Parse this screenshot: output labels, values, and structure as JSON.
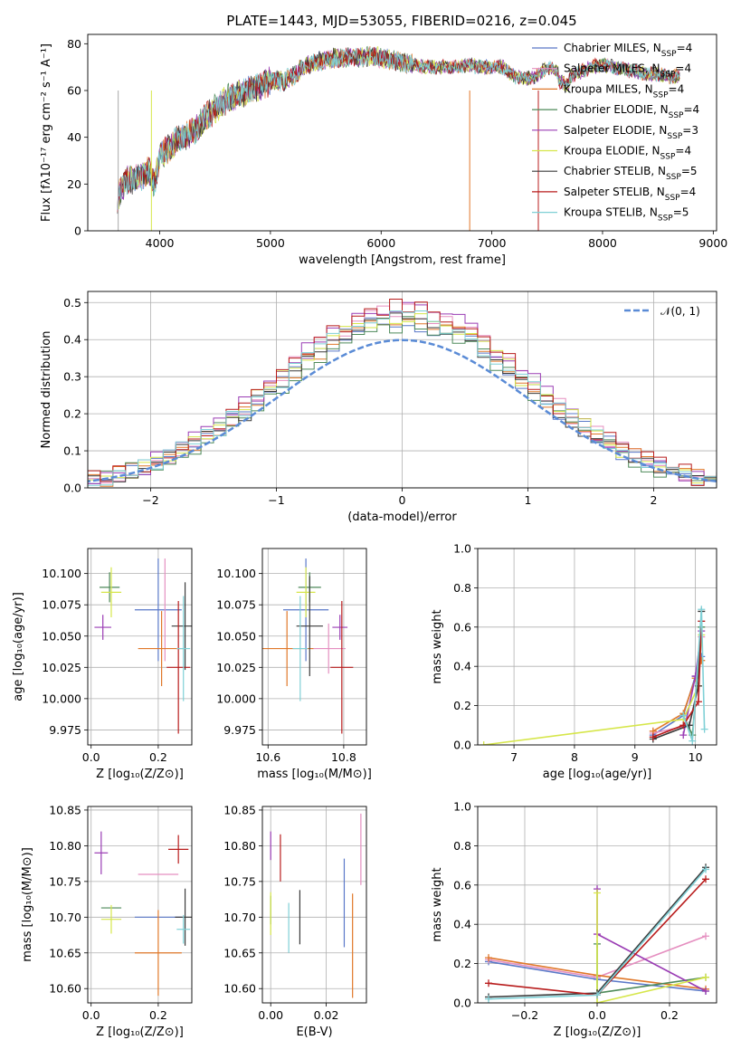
{
  "colors": {
    "Chabrier MILES": "#5a78c8",
    "Salpeter MILES": "#e58fc0",
    "Kroupa MILES": "#e0782a",
    "Chabrier ELODIE": "#4e8a5a",
    "Salpeter ELODIE": "#9a3cb4",
    "Kroupa ELODIE": "#d6e64a",
    "Chabrier STELIB": "#3a3a3a",
    "Salpeter STELIB": "#b81c1c",
    "Kroupa STELIB": "#7fd0d6"
  },
  "chart_data": [
    {
      "id": "spectrum",
      "type": "line",
      "title": "PLATE=1443, MJD=53055, FIBERID=0216, z=0.045",
      "xlabel": "wavelength [Angstrom, rest frame]",
      "ylabel": "Flux [fλ10⁻¹⁷ erg cm⁻² s⁻¹ A⁻¹]",
      "xlim": [
        3350,
        9030
      ],
      "ylim": [
        0,
        84
      ],
      "xticks": [
        4000,
        5000,
        6000,
        7000,
        8000,
        9000
      ],
      "yticks": [
        0,
        20,
        40,
        60,
        80
      ],
      "grid": false,
      "legend_position": "upper right",
      "legend": [
        {
          "label": "Chabrier MILES, N",
          "sub": "SSP",
          "tail": "=4"
        },
        {
          "label": "Salpeter MILES, N",
          "sub": "SSP",
          "tail": "=4"
        },
        {
          "label": "Kroupa MILES, N",
          "sub": "SSP",
          "tail": "=4"
        },
        {
          "label": "Chabrier ELODIE, N",
          "sub": "SSP",
          "tail": "=4"
        },
        {
          "label": "Salpeter ELODIE, N",
          "sub": "SSP",
          "tail": "=3"
        },
        {
          "label": "Kroupa ELODIE, N",
          "sub": "SSP",
          "tail": "=4"
        },
        {
          "label": "Chabrier STELIB, N",
          "sub": "SSP",
          "tail": "=5"
        },
        {
          "label": "Salpeter STELIB, N",
          "sub": "SSP",
          "tail": "=4"
        },
        {
          "label": "Kroupa STELIB, N",
          "sub": "SSP",
          "tail": "=5"
        }
      ],
      "continuum": [
        [
          3620,
          14
        ],
        [
          3700,
          22
        ],
        [
          3800,
          22
        ],
        [
          3900,
          26
        ],
        [
          3950,
          20
        ],
        [
          4000,
          32
        ],
        [
          4100,
          36
        ],
        [
          4200,
          40
        ],
        [
          4300,
          42
        ],
        [
          4400,
          48
        ],
        [
          4500,
          52
        ],
        [
          4600,
          56
        ],
        [
          4700,
          58
        ],
        [
          4800,
          60
        ],
        [
          4900,
          62
        ],
        [
          5000,
          64
        ],
        [
          5100,
          64
        ],
        [
          5200,
          66
        ],
        [
          5300,
          70
        ],
        [
          5400,
          72
        ],
        [
          5500,
          73
        ],
        [
          5600,
          74
        ],
        [
          5700,
          74
        ],
        [
          5800,
          74
        ],
        [
          5900,
          75
        ],
        [
          6000,
          74
        ],
        [
          6100,
          73
        ],
        [
          6200,
          72
        ],
        [
          6300,
          71
        ],
        [
          6400,
          70
        ],
        [
          6500,
          70
        ],
        [
          6600,
          70
        ],
        [
          6700,
          70
        ],
        [
          6800,
          71
        ],
        [
          6900,
          70
        ],
        [
          7000,
          70
        ],
        [
          7100,
          70
        ],
        [
          7200,
          66
        ],
        [
          7300,
          65
        ],
        [
          7400,
          66
        ],
        [
          7500,
          70
        ],
        [
          7600,
          68
        ],
        [
          7700,
          66
        ],
        [
          7800,
          68
        ],
        [
          7900,
          70
        ],
        [
          8000,
          71
        ],
        [
          8100,
          70
        ],
        [
          8200,
          69
        ],
        [
          8300,
          68
        ],
        [
          8400,
          67
        ],
        [
          8500,
          67
        ],
        [
          8600,
          66
        ],
        [
          8700,
          66
        ]
      ]
    },
    {
      "id": "residuals",
      "type": "histogram",
      "xlabel": "(data-model)/error",
      "ylabel": "Normed distribution",
      "xlim": [
        -2.5,
        2.5
      ],
      "ylim": [
        0,
        0.53
      ],
      "xticks": [
        -2,
        -1,
        0,
        1,
        2
      ],
      "yticks": [
        0.0,
        0.1,
        0.2,
        0.3,
        0.4,
        0.5
      ],
      "grid": true,
      "legend_position": "upper right",
      "legend_label": "𝒩(0, 1)",
      "bin_width": 0.1,
      "series_peak": [
        0.45,
        0.48,
        0.46,
        0.44,
        0.5,
        0.47,
        0.45,
        0.49,
        0.46
      ]
    },
    {
      "id": "age_vs_Z",
      "type": "errorbar",
      "xlabel": "Z [log₁₀(Z/Z⊙)]",
      "ylabel": "age  [log₁₀(age/yr)]",
      "xlim": [
        -0.01,
        0.3
      ],
      "ylim": [
        9.963,
        10.12
      ],
      "xticks": [
        0.0,
        0.2
      ],
      "yticks": [
        9.975,
        10.0,
        10.025,
        10.05,
        10.075,
        10.1
      ],
      "tick_labels_y": [
        "9.975",
        "10.000",
        "10.025",
        "10.050",
        "10.075",
        "10.100"
      ],
      "tick_labels_x": [
        "0.0",
        "0.2"
      ],
      "grid": true,
      "points": [
        {
          "series": "Chabrier MILES",
          "x": 0.2,
          "y": 10.071,
          "xerr": 0.07,
          "yerr": 0.041
        },
        {
          "series": "Salpeter MILES",
          "x": 0.22,
          "y": 10.071,
          "xerr": 0.0,
          "yerr": 0.041
        },
        {
          "series": "Kroupa MILES",
          "x": 0.21,
          "y": 10.04,
          "xerr": 0.07,
          "yerr": 0.03
        },
        {
          "series": "Chabrier ELODIE",
          "x": 0.055,
          "y": 10.089,
          "xerr": 0.03,
          "yerr": 0.012
        },
        {
          "series": "Salpeter ELODIE",
          "x": 0.035,
          "y": 10.057,
          "xerr": 0.025,
          "yerr": 0.01
        },
        {
          "series": "Kroupa ELODIE",
          "x": 0.06,
          "y": 10.085,
          "xerr": 0.03,
          "yerr": 0.02
        },
        {
          "series": "Chabrier STELIB",
          "x": 0.28,
          "y": 10.058,
          "xerr": 0.04,
          "yerr": 0.035
        },
        {
          "series": "Salpeter STELIB",
          "x": 0.26,
          "y": 10.025,
          "xerr": 0.035,
          "yerr": 0.053
        },
        {
          "series": "Kroupa STELIB",
          "x": 0.275,
          "y": 10.04,
          "xerr": 0.02,
          "yerr": 0.042
        }
      ]
    },
    {
      "id": "age_vs_mass",
      "type": "errorbar",
      "xlabel": "mass [log₁₀(M/M⊙)]",
      "ylabel": "",
      "xlim": [
        10.585,
        10.86
      ],
      "ylim": [
        9.963,
        10.12
      ],
      "xticks": [
        10.6,
        10.8
      ],
      "yticks": [
        9.975,
        10.0,
        10.025,
        10.05,
        10.075,
        10.1
      ],
      "tick_labels_y": [
        "9.975",
        "10.000",
        "10.025",
        "10.050",
        "10.075",
        "10.100"
      ],
      "tick_labels_x": [
        "10.6",
        "10.8"
      ],
      "grid": true,
      "points": [
        {
          "series": "Chabrier MILES",
          "x": 10.7,
          "y": 10.071,
          "xerr": 0.06,
          "yerr": 0.041
        },
        {
          "series": "Salpeter MILES",
          "x": 10.76,
          "y": 10.04,
          "xerr": 0.045,
          "yerr": 0.02
        },
        {
          "series": "Kroupa MILES",
          "x": 10.65,
          "y": 10.04,
          "xerr": 0.07,
          "yerr": 0.03
        },
        {
          "series": "Chabrier ELODIE",
          "x": 10.71,
          "y": 10.089,
          "xerr": 0.03,
          "yerr": 0.012
        },
        {
          "series": "Salpeter ELODIE",
          "x": 10.79,
          "y": 10.057,
          "xerr": 0.02,
          "yerr": 0.01
        },
        {
          "series": "Kroupa ELODIE",
          "x": 10.7,
          "y": 10.085,
          "xerr": 0.025,
          "yerr": 0.02
        },
        {
          "series": "Chabrier STELIB",
          "x": 10.71,
          "y": 10.058,
          "xerr": 0.035,
          "yerr": 0.04
        },
        {
          "series": "Salpeter STELIB",
          "x": 10.795,
          "y": 10.025,
          "xerr": 0.03,
          "yerr": 0.053
        },
        {
          "series": "Kroupa STELIB",
          "x": 10.685,
          "y": 10.04,
          "xerr": 0.02,
          "yerr": 0.042
        }
      ]
    },
    {
      "id": "massweight_vs_age",
      "type": "line",
      "xlabel": "age  [log₁₀(age/yr)]",
      "ylabel": "mass weight",
      "xlim": [
        6.4,
        10.35
      ],
      "ylim": [
        0,
        1.0
      ],
      "xticks": [
        7,
        8,
        9,
        10
      ],
      "yticks": [
        0.0,
        0.2,
        0.4,
        0.6,
        0.8,
        1.0
      ],
      "tick_labels_x": [
        "7",
        "8",
        "9",
        "10"
      ],
      "tick_labels_y": [
        "0.0",
        "0.2",
        "0.4",
        "0.6",
        "0.8",
        "1.0"
      ],
      "grid": true,
      "series": [
        {
          "name": "Chabrier MILES",
          "x": [
            9.3,
            9.8,
            10.0,
            10.1
          ],
          "y": [
            0.05,
            0.15,
            0.35,
            0.45
          ]
        },
        {
          "name": "Salpeter MILES",
          "x": [
            9.3,
            9.9,
            10.05,
            10.1
          ],
          "y": [
            0.06,
            0.1,
            0.3,
            0.55
          ]
        },
        {
          "name": "Kroupa MILES",
          "x": [
            9.3,
            9.8,
            10.0,
            10.1
          ],
          "y": [
            0.07,
            0.16,
            0.34,
            0.43
          ]
        },
        {
          "name": "Chabrier ELODIE",
          "x": [
            9.8,
            9.95,
            10.1
          ],
          "y": [
            0.15,
            0.05,
            0.6
          ]
        },
        {
          "name": "Salpeter ELODIE",
          "x": [
            9.8,
            10.0,
            10.1
          ],
          "y": [
            0.05,
            0.35,
            0.58
          ]
        },
        {
          "name": "Kroupa ELODIE",
          "x": [
            6.5,
            9.8,
            10.05,
            10.1
          ],
          "y": [
            0.0,
            0.13,
            0.3,
            0.56
          ]
        },
        {
          "name": "Chabrier STELIB",
          "x": [
            9.3,
            9.9,
            10.05,
            10.1
          ],
          "y": [
            0.03,
            0.1,
            0.3,
            0.68
          ]
        },
        {
          "name": "Salpeter STELIB",
          "x": [
            9.3,
            9.8,
            10.05,
            10.1
          ],
          "y": [
            0.04,
            0.1,
            0.22,
            0.63
          ]
        },
        {
          "name": "Kroupa STELIB",
          "x": [
            9.8,
            9.95,
            10.1,
            10.15
          ],
          "y": [
            0.15,
            0.02,
            0.69,
            0.08
          ]
        }
      ]
    },
    {
      "id": "mass_vs_Z",
      "type": "errorbar",
      "xlabel": "Z [log₁₀(Z/Z⊙)]",
      "ylabel": "mass [log₁₀(M/M⊙)]",
      "xlim": [
        -0.01,
        0.3
      ],
      "ylim": [
        10.58,
        10.855
      ],
      "xticks": [
        0.0,
        0.2
      ],
      "yticks": [
        10.6,
        10.65,
        10.7,
        10.75,
        10.8,
        10.85
      ],
      "tick_labels_y": [
        "10.60",
        "10.65",
        "10.70",
        "10.75",
        "10.80",
        "10.85"
      ],
      "tick_labels_x": [
        "0.0",
        "0.2"
      ],
      "grid": true,
      "points": [
        {
          "series": "Chabrier MILES",
          "x": 0.2,
          "y": 10.7,
          "xerr": 0.07,
          "yerr": 0.0
        },
        {
          "series": "Salpeter MILES",
          "x": 0.2,
          "y": 10.76,
          "xerr": 0.06,
          "yerr": 0.0
        },
        {
          "series": "Kroupa MILES",
          "x": 0.2,
          "y": 10.65,
          "xerr": 0.07,
          "yerr": 0.06
        },
        {
          "series": "Chabrier ELODIE",
          "x": 0.06,
          "y": 10.713,
          "xerr": 0.03,
          "yerr": 0.0
        },
        {
          "series": "Salpeter ELODIE",
          "x": 0.03,
          "y": 10.79,
          "xerr": 0.02,
          "yerr": 0.03
        },
        {
          "series": "Kroupa ELODIE",
          "x": 0.06,
          "y": 10.697,
          "xerr": 0.03,
          "yerr": 0.02
        },
        {
          "series": "Chabrier STELIB",
          "x": 0.28,
          "y": 10.7,
          "xerr": 0.03,
          "yerr": 0.04
        },
        {
          "series": "Salpeter STELIB",
          "x": 0.26,
          "y": 10.795,
          "xerr": 0.03,
          "yerr": 0.02
        },
        {
          "series": "Kroupa STELIB",
          "x": 0.275,
          "y": 10.683,
          "xerr": 0.02,
          "yerr": 0.02
        }
      ]
    },
    {
      "id": "mass_vs_ebv",
      "type": "errorbar",
      "xlabel": "E(B-V)",
      "ylabel": "",
      "xlim": [
        -0.003,
        0.0345
      ],
      "ylim": [
        10.58,
        10.855
      ],
      "xticks": [
        0.0,
        0.02
      ],
      "yticks": [
        10.6,
        10.65,
        10.7,
        10.75,
        10.8,
        10.85
      ],
      "tick_labels_y": [
        "10.60",
        "10.65",
        "10.70",
        "10.75",
        "10.80",
        "10.85"
      ],
      "tick_labels_x": [
        "0.00",
        "0.02"
      ],
      "grid": true,
      "points": [
        {
          "series": "Chabrier MILES",
          "x": 0.0265,
          "y": 10.72,
          "xerr": 0.0,
          "yerr": 0.062
        },
        {
          "series": "Salpeter MILES",
          "x": 0.0325,
          "y": 10.795,
          "xerr": 0.0,
          "yerr": 0.05
        },
        {
          "series": "Kroupa MILES",
          "x": 0.0295,
          "y": 10.66,
          "xerr": 0.0,
          "yerr": 0.073
        },
        {
          "series": "Chabrier ELODIE",
          "x": 0.0,
          "y": 10.71,
          "xerr": 0.0,
          "yerr": 0.02
        },
        {
          "series": "Salpeter ELODIE",
          "x": 0.0,
          "y": 10.8,
          "xerr": 0.0,
          "yerr": 0.02
        },
        {
          "series": "Kroupa ELODIE",
          "x": 0.0,
          "y": 10.705,
          "xerr": 0.0,
          "yerr": 0.03
        },
        {
          "series": "Chabrier STELIB",
          "x": 0.0105,
          "y": 10.7,
          "xerr": 0.0,
          "yerr": 0.038
        },
        {
          "series": "Salpeter STELIB",
          "x": 0.0035,
          "y": 10.783,
          "xerr": 0.0,
          "yerr": 0.033
        },
        {
          "series": "Kroupa STELIB",
          "x": 0.0065,
          "y": 10.685,
          "xerr": 0.0,
          "yerr": 0.035
        }
      ]
    },
    {
      "id": "massweight_vs_Z",
      "type": "line",
      "xlabel": "Z [log₁₀(Z/Z⊙)]",
      "ylabel": "mass weight",
      "xlim": [
        -0.33,
        0.33
      ],
      "ylim": [
        0,
        1.0
      ],
      "xticks": [
        -0.2,
        0.0,
        0.2
      ],
      "yticks": [
        0.0,
        0.2,
        0.4,
        0.6,
        0.8,
        1.0
      ],
      "tick_labels_x": [
        "−0.2",
        "0.0",
        "0.2"
      ],
      "tick_labels_y": [
        "0.0",
        "0.2",
        "0.4",
        "0.6",
        "0.8",
        "1.0"
      ],
      "grid": true,
      "series": [
        {
          "name": "Chabrier MILES",
          "x": [
            -0.3,
            0.0,
            0.3
          ],
          "y": [
            0.21,
            0.12,
            0.06
          ]
        },
        {
          "name": "Salpeter MILES",
          "x": [
            -0.3,
            0.0,
            0.3
          ],
          "y": [
            0.22,
            0.13,
            0.34
          ]
        },
        {
          "name": "Kroupa MILES",
          "x": [
            -0.3,
            0.0,
            0.3
          ],
          "y": [
            0.23,
            0.14,
            0.07
          ]
        },
        {
          "name": "Chabrier ELODIE",
          "x": [
            0.0,
            0.0,
            0.3
          ],
          "y": [
            0.3,
            0.05,
            0.13
          ]
        },
        {
          "name": "Salpeter ELODIE",
          "x": [
            0.0,
            0.0,
            0.3
          ],
          "y": [
            0.58,
            0.35,
            0.06
          ]
        },
        {
          "name": "Kroupa ELODIE",
          "x": [
            0.0,
            0.0,
            0.3
          ],
          "y": [
            0.56,
            0.0,
            0.13
          ]
        },
        {
          "name": "Chabrier STELIB",
          "x": [
            -0.3,
            0.0,
            0.3
          ],
          "y": [
            0.03,
            0.05,
            0.69
          ]
        },
        {
          "name": "Salpeter STELIB",
          "x": [
            -0.3,
            0.0,
            0.3
          ],
          "y": [
            0.1,
            0.04,
            0.63
          ]
        },
        {
          "name": "Kroupa STELIB",
          "x": [
            -0.3,
            0.0,
            0.3
          ],
          "y": [
            0.02,
            0.04,
            0.68
          ]
        }
      ]
    }
  ]
}
